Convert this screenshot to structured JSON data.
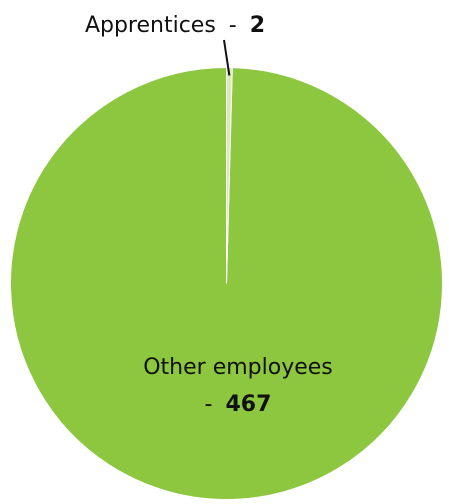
{
  "chart_data": {
    "type": "pie",
    "slices": [
      {
        "label": "Other employees",
        "value": 467,
        "color": "#8dc63f"
      },
      {
        "label": "Apprentices",
        "value": 2,
        "color": "#d9eab8"
      }
    ],
    "separator": "-",
    "title": "",
    "legend": "none"
  }
}
